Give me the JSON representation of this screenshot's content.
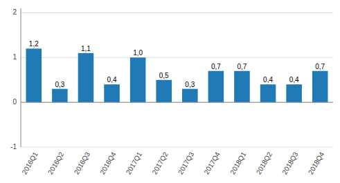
{
  "chart_data": {
    "type": "bar",
    "categories": [
      "2016Q1",
      "2016Q2",
      "2016Q3",
      "2016Q4",
      "2017Q1",
      "2017Q2",
      "2017Q3",
      "2017Q4",
      "2018Q1",
      "2018Q2",
      "2018Q3",
      "2018Q4"
    ],
    "values": [
      1.2,
      0.3,
      1.1,
      0.4,
      1.0,
      0.5,
      0.3,
      0.7,
      0.7,
      0.4,
      0.4,
      0.7
    ],
    "value_labels": [
      "1,2",
      "0,3",
      "1,1",
      "0,4",
      "1,0",
      "0,5",
      "0,3",
      "0,7",
      "0,7",
      "0,4",
      "0,4",
      "0,7"
    ],
    "data_labels": true,
    "color": "#1f7ab5",
    "ylim": [
      -1,
      2.1
    ],
    "yticks": [
      -1,
      0,
      1,
      2
    ],
    "grid": true
  }
}
